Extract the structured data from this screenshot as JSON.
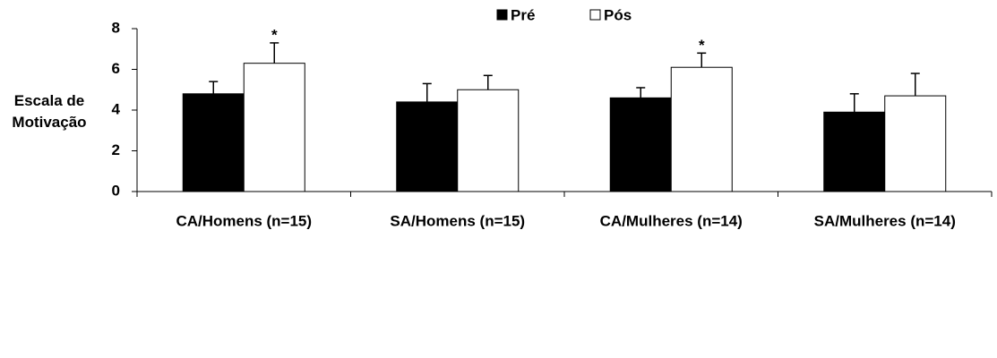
{
  "chart_data": {
    "type": "bar",
    "ylabel": "Escala de Motivação",
    "categories": [
      "CA/Homens (n=15)",
      "SA/Homens (n=15)",
      "CA/Mulheres (n=14)",
      "SA/Mulheres (n=14)"
    ],
    "series": [
      {
        "name": "Pré",
        "color": "#000000",
        "values": [
          4.8,
          4.4,
          4.6,
          3.9
        ],
        "errors": [
          0.6,
          0.9,
          0.5,
          0.9
        ]
      },
      {
        "name": "Pós",
        "color": "#ffffff",
        "values": [
          6.3,
          5.0,
          6.1,
          4.7
        ],
        "errors": [
          1.0,
          0.7,
          0.7,
          1.1
        ]
      }
    ],
    "annotations": [
      "*",
      null,
      "*",
      null
    ],
    "ylim": [
      0,
      8
    ],
    "yticks": [
      0,
      2,
      4,
      6,
      8
    ],
    "grid": false,
    "legend": "top"
  }
}
